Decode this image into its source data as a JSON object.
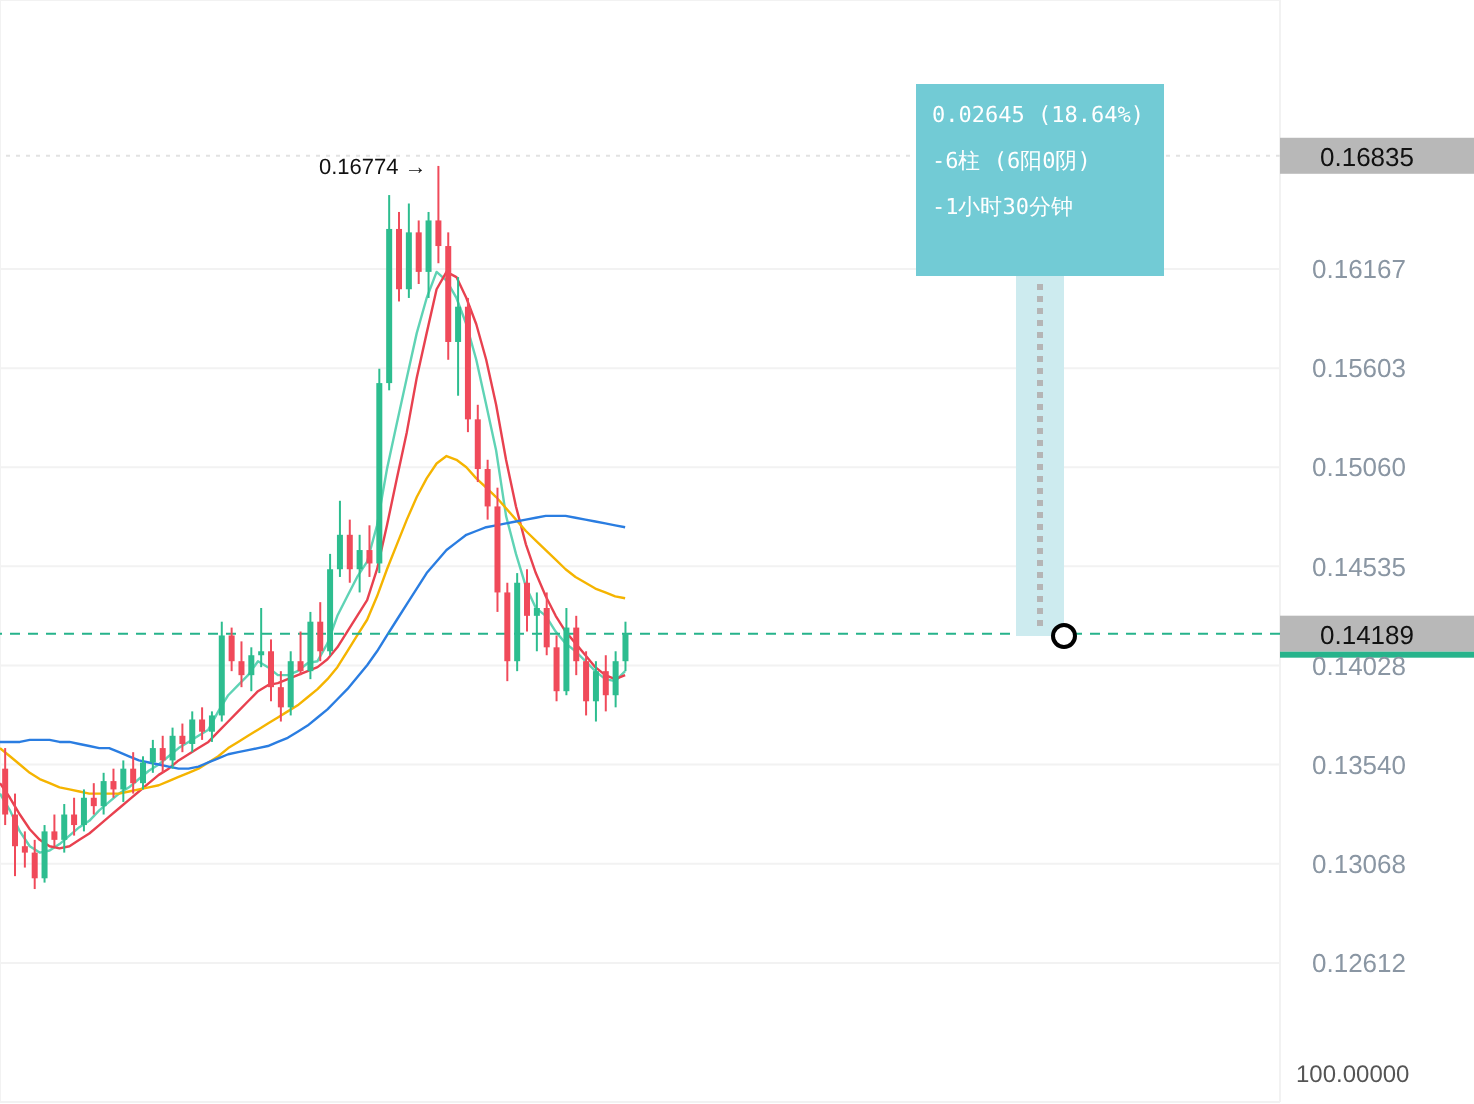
{
  "chart_data": {
    "type": "candlestick",
    "categories": [
      null,
      null,
      null,
      null,
      null,
      null,
      null,
      null,
      null,
      null,
      null,
      null,
      null,
      null,
      null,
      null,
      null,
      null,
      null,
      null,
      null,
      null,
      null,
      null,
      null,
      null,
      null,
      null,
      null,
      null,
      null,
      null,
      null,
      null,
      null,
      null,
      null,
      null,
      null,
      null,
      null,
      null,
      null,
      null,
      null,
      null,
      null,
      null,
      null,
      null,
      null,
      null,
      null,
      null,
      null,
      null,
      null,
      null,
      null,
      null,
      null,
      null,
      null,
      null,
      null,
      null,
      null,
      null,
      null,
      null,
      null,
      null,
      null,
      null,
      null,
      null,
      null,
      null,
      null,
      null,
      null,
      null,
      null,
      null,
      null,
      null,
      null,
      null,
      null,
      null,
      null,
      null,
      null,
      null,
      null,
      null,
      null,
      null,
      null,
      null,
      null,
      null,
      null,
      null,
      null,
      null,
      null,
      null,
      null,
      null,
      null,
      null,
      null,
      null,
      null,
      null,
      null,
      null,
      null,
      null,
      null,
      null,
      null,
      null,
      null,
      null,
      null,
      null,
      null,
      null
    ],
    "ohlc": [
      [
        0.1352,
        0.1362,
        0.1325,
        0.133
      ],
      [
        0.133,
        0.134,
        0.1301,
        0.1315
      ],
      [
        0.1315,
        0.1322,
        0.1305,
        0.1312
      ],
      [
        0.1312,
        0.1318,
        0.1295,
        0.13
      ],
      [
        0.13,
        0.1325,
        0.1298,
        0.1322
      ],
      [
        0.1322,
        0.133,
        0.1315,
        0.1318
      ],
      [
        0.1318,
        0.1335,
        0.1312,
        0.133
      ],
      [
        0.133,
        0.1338,
        0.132,
        0.1325
      ],
      [
        0.1325,
        0.1342,
        0.1322,
        0.1338
      ],
      [
        0.1338,
        0.1345,
        0.133,
        0.1334
      ],
      [
        0.1334,
        0.135,
        0.133,
        0.1346
      ],
      [
        0.1346,
        0.1352,
        0.1338,
        0.1342
      ],
      [
        0.1342,
        0.1356,
        0.1336,
        0.1352
      ],
      [
        0.1352,
        0.136,
        0.134,
        0.1345
      ],
      [
        0.1345,
        0.1358,
        0.1342,
        0.1355
      ],
      [
        0.1355,
        0.1366,
        0.135,
        0.1362
      ],
      [
        0.1362,
        0.1368,
        0.135,
        0.1356
      ],
      [
        0.1356,
        0.1372,
        0.1352,
        0.1368
      ],
      [
        0.1368,
        0.1374,
        0.136,
        0.1364
      ],
      [
        0.1364,
        0.138,
        0.136,
        0.1376
      ],
      [
        0.1376,
        0.1382,
        0.1366,
        0.137
      ],
      [
        0.137,
        0.138,
        0.1365,
        0.1378
      ],
      [
        0.1378,
        0.1425,
        0.1375,
        0.1418
      ],
      [
        0.1418,
        0.1422,
        0.14,
        0.1405
      ],
      [
        0.1405,
        0.1415,
        0.1392,
        0.1398
      ],
      [
        0.1398,
        0.1412,
        0.139,
        0.1408
      ],
      [
        0.1408,
        0.1432,
        0.1402,
        0.141
      ],
      [
        0.141,
        0.1416,
        0.1385,
        0.1392
      ],
      [
        0.1392,
        0.14,
        0.1375,
        0.1382
      ],
      [
        0.1382,
        0.141,
        0.1378,
        0.1405
      ],
      [
        0.1405,
        0.142,
        0.1398,
        0.14
      ],
      [
        0.14,
        0.143,
        0.1396,
        0.1425
      ],
      [
        0.1425,
        0.1435,
        0.1405,
        0.141
      ],
      [
        0.141,
        0.146,
        0.1408,
        0.1452
      ],
      [
        0.1452,
        0.1488,
        0.1448,
        0.147
      ],
      [
        0.147,
        0.1478,
        0.1445,
        0.1452
      ],
      [
        0.1452,
        0.147,
        0.144,
        0.1462
      ],
      [
        0.1462,
        0.1475,
        0.1448,
        0.1455
      ],
      [
        0.1455,
        0.156,
        0.145,
        0.1552
      ],
      [
        0.1552,
        0.166,
        0.1548,
        0.164
      ],
      [
        0.164,
        0.165,
        0.1598,
        0.1605
      ],
      [
        0.1605,
        0.1655,
        0.16,
        0.1638
      ],
      [
        0.1638,
        0.1645,
        0.1608,
        0.1615
      ],
      [
        0.1615,
        0.165,
        0.16,
        0.1645
      ],
      [
        0.1645,
        0.16774,
        0.162,
        0.163
      ],
      [
        0.163,
        0.1638,
        0.1565,
        0.1575
      ],
      [
        0.1575,
        0.1612,
        0.1545,
        0.1595
      ],
      [
        0.1595,
        0.16,
        0.1525,
        0.1532
      ],
      [
        0.1532,
        0.154,
        0.1498,
        0.1505
      ],
      [
        0.1505,
        0.151,
        0.1478,
        0.1485
      ],
      [
        0.1485,
        0.1495,
        0.143,
        0.144
      ],
      [
        0.144,
        0.1445,
        0.1395,
        0.1405
      ],
      [
        0.1405,
        0.145,
        0.14,
        0.1445
      ],
      [
        0.1445,
        0.1452,
        0.142,
        0.1428
      ],
      [
        0.1428,
        0.144,
        0.141,
        0.1432
      ],
      [
        0.1432,
        0.144,
        0.1408,
        0.1412
      ],
      [
        0.1412,
        0.1418,
        0.1385,
        0.139
      ],
      [
        0.139,
        0.1432,
        0.1388,
        0.1422
      ],
      [
        0.1422,
        0.1428,
        0.1398,
        0.1405
      ],
      [
        0.1405,
        0.141,
        0.1378,
        0.1385
      ],
      [
        0.1385,
        0.1405,
        0.1375,
        0.14
      ],
      [
        0.14,
        0.1408,
        0.138,
        0.1388
      ],
      [
        0.1388,
        0.141,
        0.1382,
        0.1405
      ],
      [
        0.1405,
        0.1425,
        0.14,
        0.14189
      ],
      null,
      null,
      null,
      null,
      null,
      null,
      null,
      null,
      null,
      null,
      null,
      null,
      null,
      null,
      null,
      null,
      null,
      null,
      null,
      null,
      null,
      null,
      null,
      null,
      null,
      null,
      null,
      null,
      null,
      null,
      null,
      null,
      null,
      null,
      null,
      null,
      null,
      null,
      null,
      null,
      null,
      null,
      null,
      null,
      null,
      null,
      null,
      null,
      null,
      null,
      null,
      null,
      null,
      null,
      null,
      null,
      null,
      null,
      null,
      null,
      null,
      null,
      null,
      null,
      null,
      null
    ],
    "colors": [
      "#f04a5a",
      "#f04a5a",
      "#f04a5a",
      "#f04a5a",
      "#2dbd8f",
      "#f04a5a",
      "#2dbd8f",
      "#f04a5a",
      "#2dbd8f",
      "#f04a5a",
      "#2dbd8f",
      "#f04a5a",
      "#2dbd8f",
      "#f04a5a",
      "#2dbd8f",
      "#2dbd8f",
      "#f04a5a",
      "#2dbd8f",
      "#f04a5a",
      "#2dbd8f",
      "#f04a5a",
      "#2dbd8f",
      "#2dbd8f",
      "#f04a5a",
      "#f04a5a",
      "#2dbd8f",
      "#2dbd8f",
      "#f04a5a",
      "#f04a5a",
      "#2dbd8f",
      "#f04a5a",
      "#2dbd8f",
      "#f04a5a",
      "#2dbd8f",
      "#2dbd8f",
      "#f04a5a",
      "#2dbd8f",
      "#f04a5a",
      "#2dbd8f",
      "#2dbd8f",
      "#f04a5a",
      "#2dbd8f",
      "#f04a5a",
      "#2dbd8f",
      "#f04a5a",
      "#f04a5a",
      "#2dbd8f",
      "#f04a5a",
      "#f04a5a",
      "#f04a5a",
      "#f04a5a",
      "#f04a5a",
      "#2dbd8f",
      "#f04a5a",
      "#2dbd8f",
      "#f04a5a",
      "#f04a5a",
      "#2dbd8f",
      "#f04a5a",
      "#f04a5a",
      "#2dbd8f",
      "#f04a5a",
      "#2dbd8f",
      "#2dbd8f",
      null,
      null,
      null,
      null,
      null,
      null,
      null,
      null,
      null,
      null,
      null,
      null,
      null,
      null,
      null,
      null,
      null,
      null,
      null,
      null,
      null,
      null,
      null,
      null,
      null,
      null,
      null,
      null,
      null,
      null,
      null,
      null,
      null,
      null,
      null,
      null,
      null,
      null,
      null,
      null,
      null,
      null,
      null,
      null,
      null,
      null,
      null,
      null,
      null,
      null,
      null,
      null,
      null,
      null,
      null,
      null,
      null,
      null,
      null,
      null,
      null,
      null,
      null,
      null,
      null,
      null
    ],
    "series": [
      {
        "type": "line",
        "color": "#5fd3b5",
        "values": [
          0.134,
          0.1332,
          0.1322,
          0.1315,
          0.1312,
          0.1313,
          0.1316,
          0.132,
          0.1324,
          0.1327,
          0.1332,
          0.1336,
          0.134,
          0.1343,
          0.1347,
          0.1351,
          0.1354,
          0.1358,
          0.1362,
          0.1365,
          0.1368,
          0.1371,
          0.138,
          0.1388,
          0.1393,
          0.1398,
          0.1405,
          0.1402,
          0.1398,
          0.1398,
          0.14,
          0.1404,
          0.1405,
          0.1414,
          0.1428,
          0.1438,
          0.1448,
          0.1456,
          0.1475,
          0.1505,
          0.153,
          0.1555,
          0.158,
          0.16,
          0.1615,
          0.161,
          0.16,
          0.1585,
          0.1565,
          0.154,
          0.1515,
          0.148,
          0.146,
          0.1443,
          0.1432,
          0.1428,
          0.142,
          0.1414,
          0.141,
          0.1405,
          0.14,
          0.1396,
          0.1395,
          0.14,
          null,
          null,
          null,
          null,
          null,
          null,
          null,
          null,
          null,
          null,
          null,
          null,
          null,
          null,
          null,
          null,
          null,
          null,
          null,
          null,
          null,
          null,
          null,
          null,
          null,
          null,
          null,
          null,
          null,
          null,
          null,
          null,
          null,
          null,
          null,
          null,
          null,
          null,
          null,
          null,
          null,
          null,
          null,
          null,
          null,
          null,
          null,
          null,
          null,
          null,
          null,
          null,
          null,
          null,
          null,
          null,
          null,
          null,
          null,
          null,
          null,
          null,
          null,
          null,
          null,
          null
        ]
      },
      {
        "type": "line",
        "color": "#e8414f",
        "values": [
          0.1345,
          0.1338,
          0.133,
          0.1323,
          0.1318,
          0.1315,
          0.1314,
          0.1315,
          0.1318,
          0.1321,
          0.1325,
          0.1329,
          0.1333,
          0.1337,
          0.1341,
          0.1345,
          0.1349,
          0.1352,
          0.1356,
          0.1359,
          0.1362,
          0.1365,
          0.137,
          0.1375,
          0.138,
          0.1385,
          0.139,
          0.1393,
          0.1394,
          0.1396,
          0.1398,
          0.14,
          0.1402,
          0.1406,
          0.1412,
          0.142,
          0.1428,
          0.1436,
          0.1452,
          0.1475,
          0.15,
          0.1525,
          0.1555,
          0.158,
          0.1605,
          0.1615,
          0.1612,
          0.16,
          0.1585,
          0.1565,
          0.154,
          0.151,
          0.1485,
          0.1465,
          0.145,
          0.1438,
          0.1428,
          0.142,
          0.1414,
          0.1408,
          0.1402,
          0.1398,
          0.1396,
          0.1398,
          null,
          null,
          null,
          null,
          null,
          null,
          null,
          null,
          null,
          null,
          null,
          null,
          null,
          null,
          null,
          null,
          null,
          null,
          null,
          null,
          null,
          null,
          null,
          null,
          null,
          null,
          null,
          null,
          null,
          null,
          null,
          null,
          null,
          null,
          null,
          null,
          null,
          null,
          null,
          null,
          null,
          null,
          null,
          null,
          null,
          null,
          null,
          null,
          null,
          null,
          null,
          null,
          null,
          null,
          null,
          null,
          null,
          null,
          null,
          null,
          null,
          null,
          null,
          null,
          null,
          null
        ]
      },
      {
        "type": "line",
        "color": "#f5b400",
        "values": [
          0.1362,
          0.1358,
          0.1354,
          0.135,
          0.1347,
          0.1345,
          0.1343,
          0.1342,
          0.1341,
          0.134,
          0.134,
          0.134,
          0.134,
          0.1341,
          0.1342,
          0.1343,
          0.1344,
          0.1346,
          0.1348,
          0.135,
          0.1352,
          0.1355,
          0.1358,
          0.1362,
          0.1365,
          0.1368,
          0.1371,
          0.1374,
          0.1377,
          0.138,
          0.1383,
          0.1387,
          0.1391,
          0.1396,
          0.1402,
          0.141,
          0.1418,
          0.1426,
          0.1438,
          0.1452,
          0.1465,
          0.1478,
          0.149,
          0.15,
          0.1508,
          0.1512,
          0.151,
          0.1506,
          0.15,
          0.1495,
          0.149,
          0.1484,
          0.1478,
          0.1472,
          0.1467,
          0.1462,
          0.1457,
          0.1452,
          0.1448,
          0.1445,
          0.1442,
          0.144,
          0.1438,
          0.1437,
          null,
          null,
          null,
          null,
          null,
          null,
          null,
          null,
          null,
          null,
          null,
          null,
          null,
          null,
          null,
          null,
          null,
          null,
          null,
          null,
          null,
          null,
          null,
          null,
          null,
          null,
          null,
          null,
          null,
          null,
          null,
          null,
          null,
          null,
          null,
          null,
          null,
          null,
          null,
          null,
          null,
          null,
          null,
          null,
          null,
          null,
          null,
          null,
          null,
          null,
          null,
          null,
          null,
          null,
          null,
          null,
          null,
          null,
          null,
          null,
          null,
          null,
          null,
          null,
          null,
          null
        ]
      },
      {
        "type": "line",
        "color": "#2a7de1",
        "values": [
          0.1365,
          0.1365,
          0.1365,
          0.1366,
          0.1366,
          0.1366,
          0.1365,
          0.1365,
          0.1364,
          0.1363,
          0.1362,
          0.1362,
          0.136,
          0.1358,
          0.1356,
          0.1355,
          0.1354,
          0.1353,
          0.1352,
          0.1352,
          0.1353,
          0.1355,
          0.1357,
          0.1359,
          0.136,
          0.1361,
          0.1362,
          0.1363,
          0.1365,
          0.1367,
          0.137,
          0.1373,
          0.1377,
          0.1381,
          0.1386,
          0.1391,
          0.1397,
          0.1403,
          0.141,
          0.1418,
          0.1426,
          0.1434,
          0.1442,
          0.145,
          0.1456,
          0.1462,
          0.1466,
          0.147,
          0.1472,
          0.1474,
          0.1475,
          0.1476,
          0.1477,
          0.1478,
          0.1479,
          0.148,
          0.148,
          0.148,
          0.1479,
          0.1478,
          0.1477,
          0.1476,
          0.1475,
          0.1474,
          null,
          null,
          null,
          null,
          null,
          null,
          null,
          null,
          null,
          null,
          null,
          null,
          null,
          null,
          null,
          null,
          null,
          null,
          null,
          null,
          null,
          null,
          null,
          null,
          null,
          null,
          null,
          null,
          null,
          null,
          null,
          null,
          null,
          null,
          null,
          null,
          null,
          null,
          null,
          null,
          null,
          null,
          null,
          null,
          null,
          null,
          null,
          null,
          null,
          null,
          null,
          null,
          null,
          null,
          null,
          null,
          null,
          null,
          null,
          null,
          null,
          null,
          null,
          null,
          null,
          null
        ]
      }
    ],
    "ylim": [
      0.12,
      0.178
    ],
    "yticks": [
      {
        "value": 0.12612,
        "label": "0.12612"
      },
      {
        "value": 0.13068,
        "label": "0.13068"
      },
      {
        "value": 0.1354,
        "label": "0.13540"
      },
      {
        "value": 0.14028,
        "label": "0.14028"
      },
      {
        "value": 0.14535,
        "label": "0.14535"
      },
      {
        "value": 0.1506,
        "label": "0.15060"
      },
      {
        "value": 0.15603,
        "label": "0.15603"
      },
      {
        "value": 0.16167,
        "label": "0.16167"
      }
    ],
    "log": true,
    "grid": true,
    "tick_labels": "y",
    "marker": "none",
    "line_style": "solid",
    "ref_lines": [
      {
        "axis": "y",
        "value": 0.14189,
        "label": "0.14189",
        "color": "#26b38b",
        "line_style": "dashed"
      },
      {
        "axis": "y",
        "value": 0.16835,
        "label": "0.16835",
        "color": "#e2e2e2",
        "line_style": "dotted"
      }
    ],
    "annotations": [
      "0.16774 →",
      "0.02645 (18.64%)",
      "-6柱 (6阳0阴)",
      "-1小时30分钟",
      "100.00000"
    ]
  }
}
